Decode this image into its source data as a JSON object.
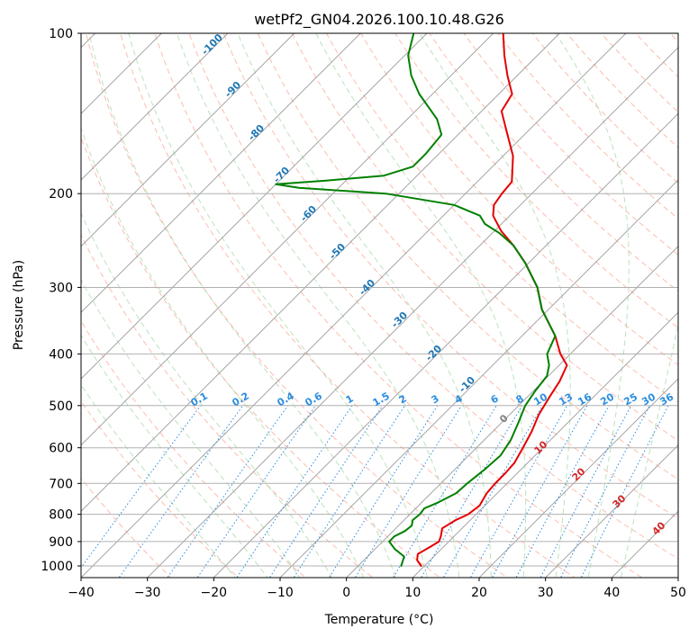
{
  "chart_data": {
    "type": "line",
    "title": "wetPf2_GN04.2026.100.10.48.G26",
    "xlabel": "Temperature (°C)",
    "ylabel": "Pressure (hPa)",
    "xlim": [
      -40,
      50
    ],
    "ylim": [
      1050,
      100
    ],
    "x_ticks": [
      -40,
      -30,
      -20,
      -10,
      0,
      10,
      20,
      30,
      40,
      50
    ],
    "y_ticks": [
      1000,
      900,
      800,
      700,
      600,
      500,
      400,
      300,
      200,
      100
    ],
    "series": [
      {
        "name": "Temperature",
        "color": "#e60000",
        "points": [
          [
            1000,
            9.5
          ],
          [
            975,
            8.0
          ],
          [
            950,
            7.2
          ],
          [
            920,
            8.0
          ],
          [
            900,
            8.5
          ],
          [
            880,
            8.0
          ],
          [
            850,
            7.0
          ],
          [
            820,
            7.8
          ],
          [
            800,
            8.8
          ],
          [
            770,
            9.2
          ],
          [
            730,
            8.4
          ],
          [
            700,
            8.2
          ],
          [
            670,
            8.2
          ],
          [
            640,
            8.0
          ],
          [
            600,
            7.0
          ],
          [
            560,
            5.9
          ],
          [
            520,
            4.4
          ],
          [
            480,
            3.3
          ],
          [
            450,
            2.5
          ],
          [
            420,
            1.2
          ],
          [
            400,
            -1.5
          ],
          [
            370,
            -5.0
          ],
          [
            330,
            -11.0
          ],
          [
            300,
            -15.0
          ],
          [
            270,
            -20.5
          ],
          [
            250,
            -25.0
          ],
          [
            235,
            -29.0
          ],
          [
            220,
            -32.5
          ],
          [
            210,
            -34.0
          ],
          [
            200,
            -34.5
          ],
          [
            190,
            -34.8
          ],
          [
            170,
            -38.5
          ],
          [
            150,
            -44.0
          ],
          [
            140,
            -47.0
          ],
          [
            130,
            -48.0
          ],
          [
            120,
            -51.5
          ],
          [
            110,
            -55.0
          ],
          [
            100,
            -58.5
          ]
        ]
      },
      {
        "name": "Dewpoint",
        "color": "#008000",
        "points": [
          [
            1000,
            6.5
          ],
          [
            980,
            6.0
          ],
          [
            960,
            5.5
          ],
          [
            930,
            3.0
          ],
          [
            900,
            1.0
          ],
          [
            880,
            1.0
          ],
          [
            860,
            1.8
          ],
          [
            840,
            2.0
          ],
          [
            820,
            1.3
          ],
          [
            800,
            1.5
          ],
          [
            780,
            1.3
          ],
          [
            760,
            2.5
          ],
          [
            730,
            3.8
          ],
          [
            700,
            4.0
          ],
          [
            660,
            4.5
          ],
          [
            620,
            4.8
          ],
          [
            580,
            4.0
          ],
          [
            540,
            2.6
          ],
          [
            500,
            1.0
          ],
          [
            470,
            0.3
          ],
          [
            440,
            -0.2
          ],
          [
            420,
            -1.5
          ],
          [
            400,
            -3.5
          ],
          [
            370,
            -5.0
          ],
          [
            330,
            -11.0
          ],
          [
            300,
            -15.0
          ],
          [
            270,
            -20.5
          ],
          [
            250,
            -25.0
          ],
          [
            237,
            -29.0
          ],
          [
            228,
            -32.5
          ],
          [
            220,
            -34.5
          ],
          [
            210,
            -40.0
          ],
          [
            200,
            -52.0
          ],
          [
            195,
            -66.0
          ],
          [
            192,
            -70.0
          ],
          [
            189,
            -63.0
          ],
          [
            185,
            -55.0
          ],
          [
            178,
            -52.0
          ],
          [
            168,
            -52.0
          ],
          [
            155,
            -52.5
          ],
          [
            145,
            -55.5
          ],
          [
            130,
            -62.0
          ],
          [
            120,
            -66.0
          ],
          [
            110,
            -69.5
          ],
          [
            100,
            -72.0
          ]
        ]
      }
    ],
    "isotherm_labels": [
      "-100",
      "-90",
      "-80",
      "-70",
      "-60",
      "-50",
      "-40",
      "-30",
      "-20",
      "-10"
    ],
    "mixing_ratio_labels": [
      "0.1",
      "0.2",
      "0.4",
      "0.6",
      "1",
      "1.5",
      "2",
      "3",
      "4",
      "6",
      "8",
      "10",
      "13",
      "16",
      "20",
      "25",
      "30",
      "36"
    ],
    "mixing_ratio_values": [
      0.1,
      0.2,
      0.4,
      0.6,
      1,
      1.5,
      2,
      3,
      4,
      6,
      8,
      10,
      13,
      16,
      20,
      25,
      30,
      36
    ],
    "freezing_label": "0",
    "warm_isotherm_labels": [
      "10",
      "20",
      "30",
      "40"
    ],
    "grid": true
  }
}
